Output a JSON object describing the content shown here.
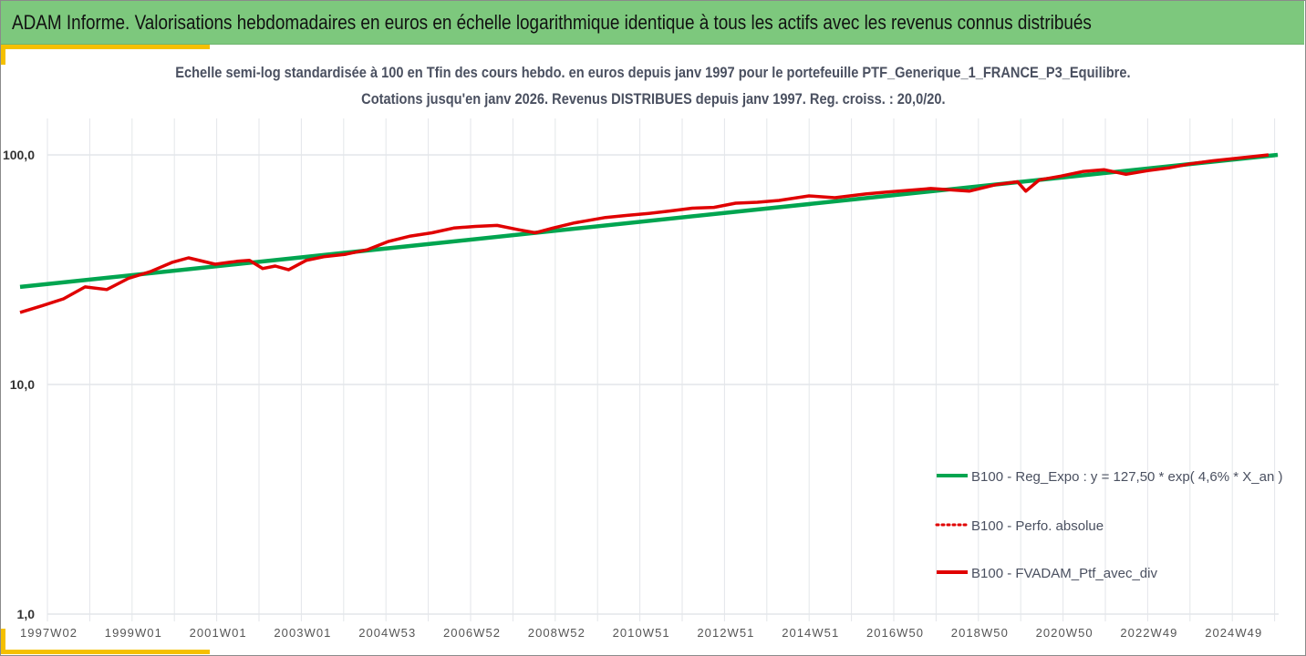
{
  "header": {
    "title": "ADAM Informe. Valorisations hebdomadaires en euros en échelle logarithmique identique à tous les actifs avec les revenus connus distribués"
  },
  "colors": {
    "header_bg": "#7dc87d",
    "accent": "#f5c000",
    "regression": "#00a550",
    "portfolio": "#e00000"
  },
  "chart_data": {
    "type": "line",
    "title_line1": "Echelle semi-log standardisée  à 100 en Tfin des cours hebdo.  en euros depuis janv 1997 pour le portefeuille PTF_Generique_1_FRANCE_P3_Equilibre.",
    "title_line2": "Cotations  jusqu'en janv 2026. Revenus DISTRIBUES depuis janv 1997. Reg. croiss. : 20,0/20.",
    "y_scale": "log",
    "ylim": [
      1,
      100
    ],
    "y_ticks": [
      "1,0",
      "10,0",
      "100,0"
    ],
    "x_ticks": [
      "1997W02",
      "1999W01",
      "2001W01",
      "2003W01",
      "2004W53",
      "2006W52",
      "2008W52",
      "2010W51",
      "2012W51",
      "2014W51",
      "2016W50",
      "2018W50",
      "2020W50",
      "2022W49",
      "2024W49"
    ],
    "grid": true,
    "legend_position": "bottom-right",
    "series": [
      {
        "name": "B100 - Reg_Expo : y = 127,50 * exp( 4,6% *  X_an )",
        "style": "solid-green",
        "x": [
          "1997W01",
          "2026W01"
        ],
        "y": [
          26.6,
          100
        ]
      },
      {
        "name": "B100 - Perfo. absolue",
        "style": "dotted-red",
        "x": [],
        "y": []
      },
      {
        "name": "B100 - FVADAM_Ptf_avec_div",
        "style": "solid-red",
        "x": [
          "1997W01",
          "1997W27",
          "1998W01",
          "1998W27",
          "1999W01",
          "1999W27",
          "2000W01",
          "2000W27",
          "2000W47",
          "2001W27",
          "2002W01",
          "2002W16",
          "2002W32",
          "2002W47",
          "2003W11",
          "2003W32",
          "2004W01",
          "2004W27",
          "2005W01",
          "2005W27",
          "2006W01",
          "2006W27",
          "2007W01",
          "2007W27",
          "2008W01",
          "2008W27",
          "2008W47",
          "2009W16",
          "2009W42",
          "2010W27",
          "2011W01",
          "2011W27",
          "2012W01",
          "2012W27",
          "2013W01",
          "2013W27",
          "2014W01",
          "2014W27",
          "2015W11",
          "2015W42",
          "2016W27",
          "2017W01",
          "2017W27",
          "2018W01",
          "2018W47",
          "2019W27",
          "2020W01",
          "2020W11",
          "2020W27",
          "2021W01",
          "2021W27",
          "2022W01",
          "2022W27",
          "2023W01",
          "2023W27",
          "2024W01",
          "2024W27",
          "2025W01",
          "2025W42"
        ],
        "y": [
          20.6,
          22,
          23.6,
          26.6,
          25.9,
          29,
          31,
          34,
          35.6,
          33.4,
          34.4,
          34.7,
          32,
          32.8,
          31.6,
          34.7,
          36,
          36.9,
          38.6,
          42,
          44.3,
          45.8,
          48,
          48.8,
          49.3,
          47.2,
          45.8,
          48,
          50.6,
          53.4,
          54.5,
          55.6,
          57,
          58.6,
          59.1,
          61.6,
          62.2,
          63.3,
          66.3,
          65.1,
          67.6,
          68.9,
          70.1,
          71.4,
          69.5,
          74.2,
          76.4,
          69.5,
          77.8,
          80.8,
          84.6,
          86.2,
          82.3,
          85.4,
          87.8,
          91.5,
          94.2,
          96.4,
          100
        ]
      }
    ]
  }
}
